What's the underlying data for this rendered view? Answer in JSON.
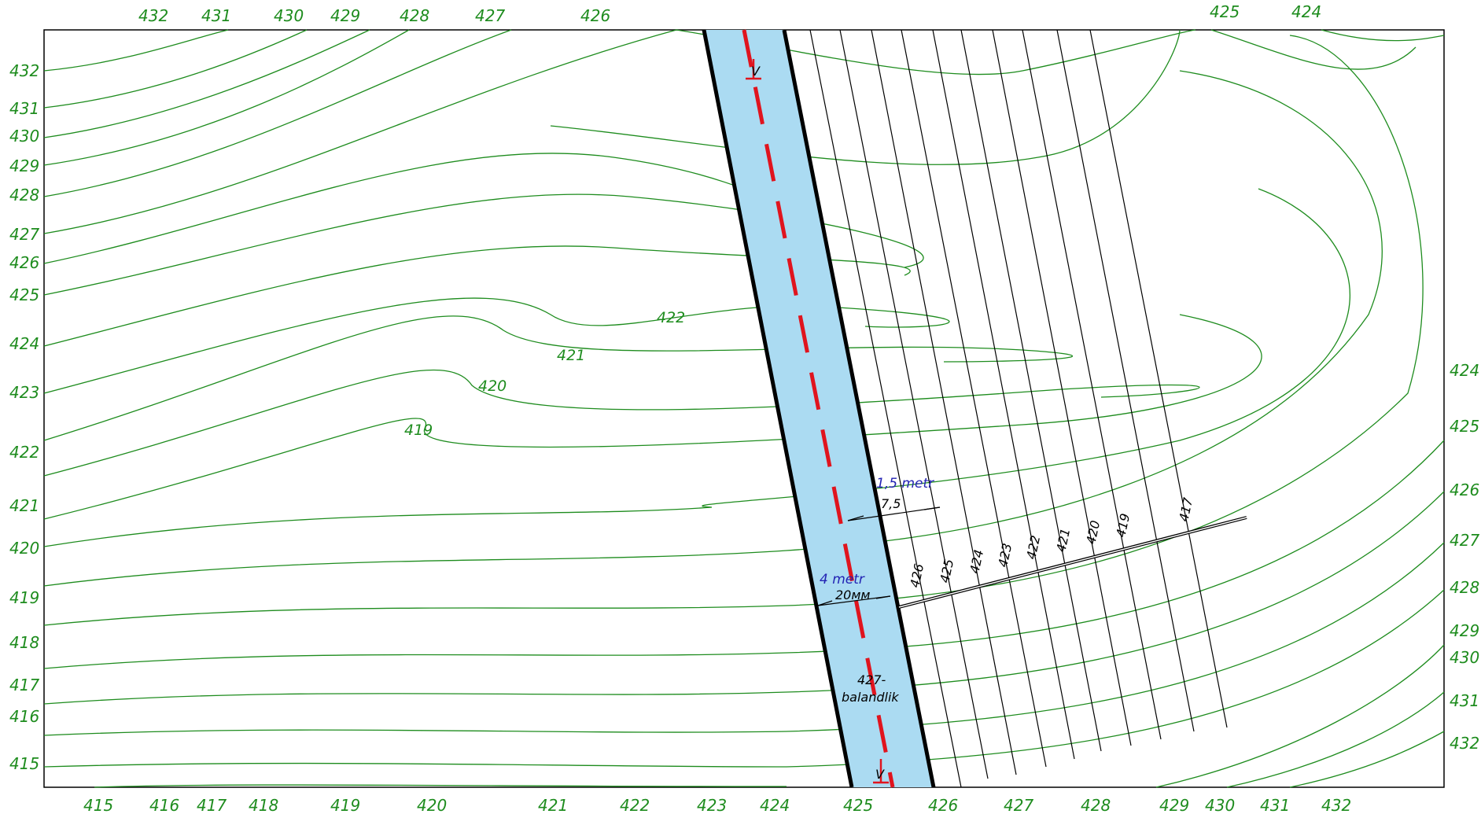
{
  "colors": {
    "contour": "#1e8c1e",
    "canal_fill": "#abdbf2",
    "axis": "#e0141e",
    "dimension_blue": "#2323b4",
    "frame": "#000000"
  },
  "labels": {
    "top": [
      "432",
      "431",
      "430",
      "429",
      "428",
      "427",
      "426",
      "425",
      "424"
    ],
    "bottom": [
      "415",
      "416",
      "417",
      "418",
      "419",
      "420",
      "421",
      "422",
      "423",
      "424",
      "425",
      "426",
      "427",
      "428",
      "429",
      "430",
      "431",
      "432"
    ],
    "left": [
      "432",
      "431",
      "430",
      "429",
      "428",
      "427",
      "426",
      "425",
      "424",
      "423",
      "422",
      "421",
      "420",
      "419",
      "418",
      "417",
      "416",
      "415"
    ],
    "right": [
      "424",
      "425",
      "426",
      "427",
      "428",
      "429",
      "430",
      "431",
      "432"
    ],
    "inner": [
      "422",
      "421",
      "420",
      "419"
    ],
    "profile": [
      "426",
      "425",
      "424",
      "423",
      "422",
      "421",
      "420",
      "419",
      "417"
    ]
  },
  "annotations": {
    "dim_blue_1": "1,5 metr",
    "dim_black_1": "7,5",
    "dim_blue_2": "4 metr",
    "dim_black_2": "20мм",
    "height_line1": "427-",
    "height_line2": "balandlik",
    "section_mark": "V"
  }
}
